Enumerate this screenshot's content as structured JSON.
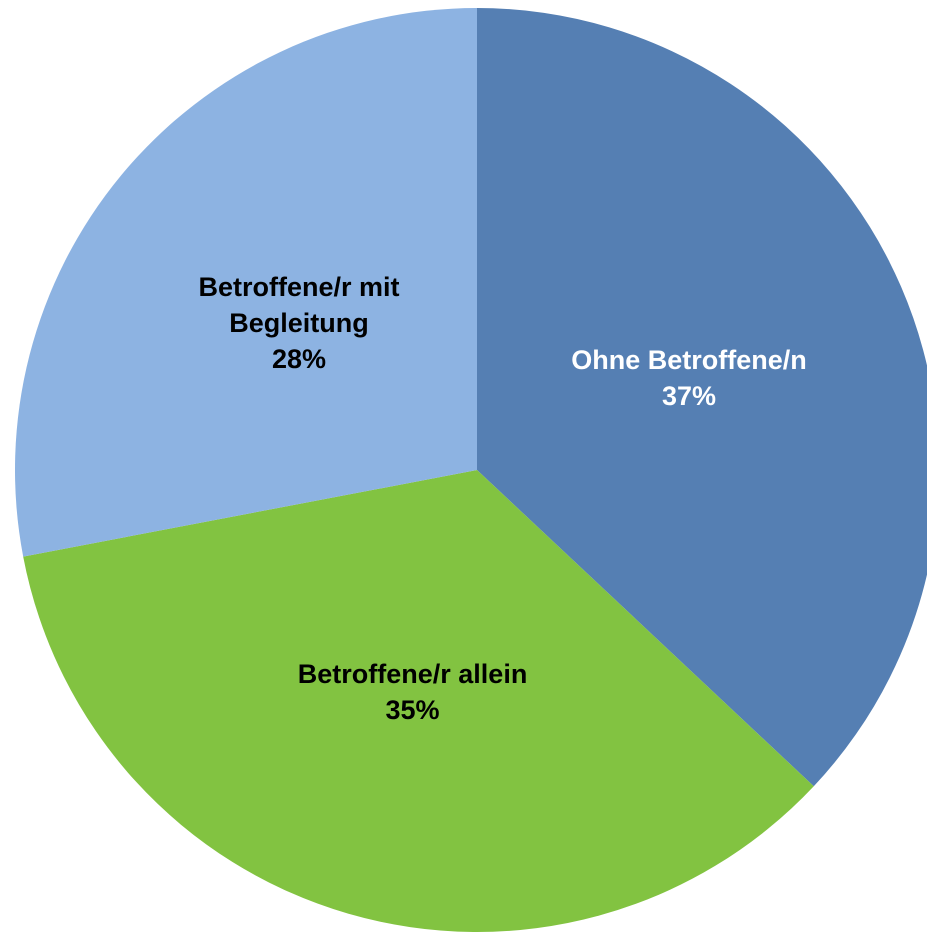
{
  "chart_data": {
    "type": "pie",
    "categories": [
      "Ohne Betroffene/n",
      "Betroffene/r allein",
      "Betroffene/r mit Begleitung"
    ],
    "values": [
      37,
      35,
      28
    ],
    "value_labels": [
      "37%",
      "35%",
      "28%"
    ],
    "colors": [
      "#557fb3",
      "#82c341",
      "#8db3e2"
    ],
    "label_colors": [
      "#ffffff",
      "#000000",
      "#000000"
    ]
  }
}
